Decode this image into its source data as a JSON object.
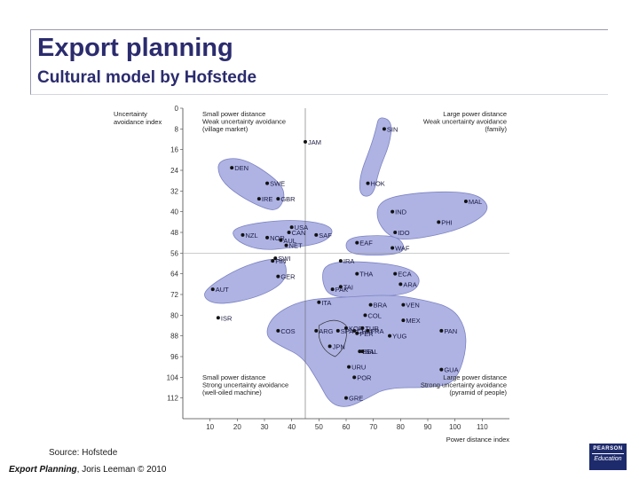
{
  "slide": {
    "title": "Export planning",
    "subtitle": "Cultural model by Hofstede",
    "source": "Source: Hofstede",
    "footer_bold": "Export Planning",
    "footer_rest": ", Joris Leeman © 2010",
    "logo_line1": "PEARSON",
    "logo_line2": "Education"
  },
  "chart_data": {
    "type": "scatter",
    "xlabel": "Power distance index",
    "ylabel": "Uncertainty\navoidance index",
    "xlim": [
      0,
      120
    ],
    "ylim": [
      0,
      120
    ],
    "y_reversed": true,
    "x_ticks": [
      10,
      20,
      30,
      40,
      50,
      60,
      70,
      80,
      90,
      100,
      110
    ],
    "y_ticks": [
      0,
      8,
      16,
      24,
      32,
      40,
      48,
      56,
      64,
      72,
      80,
      88,
      96,
      104,
      112
    ],
    "divider_x": 45,
    "divider_y": 56,
    "quadrant_labels": {
      "top_left": [
        "Small power distance",
        "Weak uncertainty avoidance",
        "(village market)"
      ],
      "top_right": [
        "Large power distance",
        "Weak uncertainty avoidance",
        "(family)"
      ],
      "bottom_left": [
        "Small power distance",
        "Strong uncertainty avoidance",
        "(well-oiled machine)"
      ],
      "bottom_right": [
        "Large power distance",
        "Strong uncertainty avoidance",
        "(pyramid of people)"
      ]
    },
    "cluster_color": "#aeb3e3",
    "points": [
      {
        "label": "SIN",
        "x": 74,
        "y": 8
      },
      {
        "label": "JAM",
        "x": 45,
        "y": 13
      },
      {
        "label": "HOK",
        "x": 68,
        "y": 29
      },
      {
        "label": "DEN",
        "x": 18,
        "y": 23
      },
      {
        "label": "SWE",
        "x": 31,
        "y": 29
      },
      {
        "label": "IRE",
        "x": 28,
        "y": 35
      },
      {
        "label": "GBR",
        "x": 35,
        "y": 35
      },
      {
        "label": "MAL",
        "x": 104,
        "y": 36
      },
      {
        "label": "IND",
        "x": 77,
        "y": 40
      },
      {
        "label": "PHI",
        "x": 94,
        "y": 44
      },
      {
        "label": "IDO",
        "x": 78,
        "y": 48
      },
      {
        "label": "NZL",
        "x": 22,
        "y": 49
      },
      {
        "label": "USA",
        "x": 40,
        "y": 46
      },
      {
        "label": "CAN",
        "x": 39,
        "y": 48
      },
      {
        "label": "SAF",
        "x": 49,
        "y": 49
      },
      {
        "label": "NOR",
        "x": 31,
        "y": 50
      },
      {
        "label": "NET",
        "x": 38,
        "y": 53
      },
      {
        "label": "AUL",
        "x": 36,
        "y": 51
      },
      {
        "label": "EAF",
        "x": 64,
        "y": 52
      },
      {
        "label": "WAF",
        "x": 77,
        "y": 54
      },
      {
        "label": "SWI",
        "x": 34,
        "y": 58
      },
      {
        "label": "FIN",
        "x": 33,
        "y": 59
      },
      {
        "label": "GER",
        "x": 35,
        "y": 65
      },
      {
        "label": "IRA",
        "x": 58,
        "y": 59
      },
      {
        "label": "THA",
        "x": 64,
        "y": 64
      },
      {
        "label": "ECA",
        "x": 78,
        "y": 64
      },
      {
        "label": "PAK",
        "x": 55,
        "y": 70
      },
      {
        "label": "TAI",
        "x": 58,
        "y": 69
      },
      {
        "label": "ARA",
        "x": 80,
        "y": 68
      },
      {
        "label": "AUT",
        "x": 11,
        "y": 70
      },
      {
        "label": "ISR",
        "x": 13,
        "y": 81
      },
      {
        "label": "ITA",
        "x": 50,
        "y": 75
      },
      {
        "label": "BRA",
        "x": 69,
        "y": 76
      },
      {
        "label": "VEN",
        "x": 81,
        "y": 76
      },
      {
        "label": "CHL",
        "x": 63,
        "y": 86
      },
      {
        "label": "KOR",
        "x": 60,
        "y": 85
      },
      {
        "label": "COL",
        "x": 67,
        "y": 80
      },
      {
        "label": "MEX",
        "x": 81,
        "y": 82
      },
      {
        "label": "TUR",
        "x": 66,
        "y": 85
      },
      {
        "label": "ARG",
        "x": 49,
        "y": 86
      },
      {
        "label": "COS",
        "x": 35,
        "y": 86
      },
      {
        "label": "SPA",
        "x": 57,
        "y": 86
      },
      {
        "label": "PAN",
        "x": 95,
        "y": 86
      },
      {
        "label": "FRA",
        "x": 68,
        "y": 86
      },
      {
        "label": "YUG",
        "x": 76,
        "y": 88
      },
      {
        "label": "PER",
        "x": 64,
        "y": 87
      },
      {
        "label": "JPN",
        "x": 54,
        "y": 92
      },
      {
        "label": "BEL",
        "x": 65,
        "y": 94
      },
      {
        "label": "SAL",
        "x": 66,
        "y": 94
      },
      {
        "label": "URU",
        "x": 61,
        "y": 100
      },
      {
        "label": "GUA",
        "x": 95,
        "y": 101
      },
      {
        "label": "POR",
        "x": 63,
        "y": 104
      },
      {
        "label": "GRE",
        "x": 60,
        "y": 112
      }
    ]
  }
}
